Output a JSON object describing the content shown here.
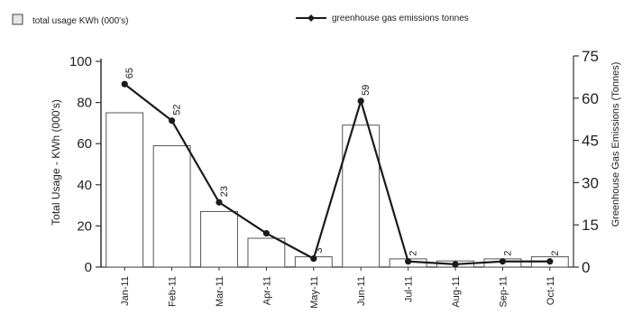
{
  "chart_data": {
    "type": "bar",
    "title": "",
    "categories": [
      "Jan-11",
      "Feb-11",
      "Mar-11",
      "Apr-11",
      "May-11",
      "Jun-11",
      "Jul-11",
      "Aug-11",
      "Sep-11",
      "Oct-11"
    ],
    "legend": [
      {
        "key": "bar",
        "label": "total usage  KWh (000's)"
      },
      {
        "key": "line",
        "label": "greenhouse gas emissions tonnes"
      }
    ],
    "series": [
      {
        "name": "total usage  KWh (000's)",
        "type": "bar",
        "axis": "left",
        "values": [
          75,
          59,
          27,
          14,
          5,
          69,
          4,
          3,
          4,
          5
        ]
      },
      {
        "name": "greenhouse gas emissions tonnes",
        "type": "line",
        "axis": "right",
        "values": [
          65,
          52,
          23,
          12,
          3,
          59,
          2,
          1,
          2,
          2
        ],
        "labels": [
          "65",
          "52",
          "23",
          "",
          "3",
          "59",
          "2",
          "",
          "2",
          "2"
        ]
      }
    ],
    "ylabel": "Total Usage - KWh (000's)",
    "ylabel_right": "Greenhouse Gas Emissions (Tonnes)",
    "ylim": [
      0,
      100
    ],
    "ylim_right": [
      0,
      75
    ],
    "yticks": [
      "0",
      "20",
      "40",
      "60",
      "80",
      "100"
    ],
    "yticks_right": [
      "0",
      "15",
      "30",
      "45",
      "60",
      "75"
    ],
    "colors": {
      "bar_fill": "#ffffff",
      "bar_stroke": "#555555",
      "line": "#1a1a1a",
      "axis": "#333333"
    }
  }
}
